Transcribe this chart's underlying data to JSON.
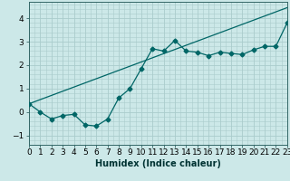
{
  "title": "",
  "xlabel": "Humidex (Indice chaleur)",
  "ylabel": "",
  "background_color": "#cce8e8",
  "grid_color": "#aacccc",
  "line_color": "#006666",
  "x_ticks": [
    0,
    1,
    2,
    3,
    4,
    5,
    6,
    7,
    8,
    9,
    10,
    11,
    12,
    13,
    14,
    15,
    16,
    17,
    18,
    19,
    20,
    21,
    22,
    23
  ],
  "x_tick_labels": [
    "0",
    "1",
    "2",
    "3",
    "4",
    "5",
    "6",
    "7",
    "8",
    "9",
    "10",
    "11",
    "12",
    "13",
    "14",
    "15",
    "16",
    "17",
    "18",
    "19",
    "20",
    "21",
    "22",
    "23"
  ],
  "ylim": [
    -1.4,
    4.7
  ],
  "xlim": [
    0,
    23
  ],
  "yticks": [
    -1,
    0,
    1,
    2,
    3,
    4
  ],
  "curve_x": [
    0,
    1,
    2,
    3,
    4,
    5,
    6,
    7,
    8,
    9,
    10,
    11,
    12,
    13,
    14,
    15,
    16,
    17,
    18,
    19,
    20,
    21,
    22,
    23
  ],
  "curve_y": [
    0.35,
    0.0,
    -0.3,
    -0.15,
    -0.1,
    -0.55,
    -0.6,
    -0.3,
    0.6,
    1.0,
    1.85,
    2.7,
    2.6,
    3.05,
    2.6,
    2.55,
    2.4,
    2.55,
    2.5,
    2.45,
    2.65,
    2.8,
    2.8,
    3.8
  ],
  "line_x": [
    0,
    23
  ],
  "line_y": [
    0.35,
    4.45
  ],
  "marker": "D",
  "marker_size": 2.5,
  "line_width": 0.9,
  "font_size_xlabel": 7,
  "font_size_ticks": 6.5
}
